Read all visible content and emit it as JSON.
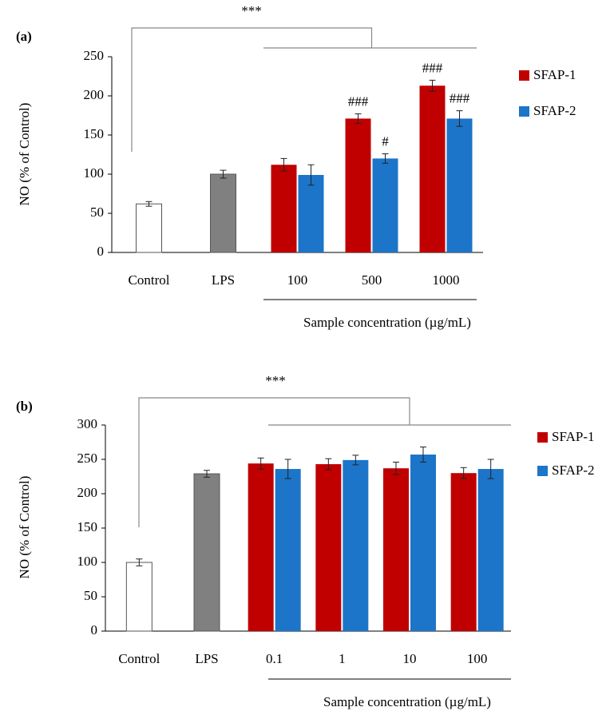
{
  "chart_data": [
    {
      "type": "bar",
      "title": "(a)",
      "y_label": "NO (% of Control)",
      "x_label": "Sample concentration (µg/mL)",
      "significance": "***",
      "categories": [
        "Control",
        "LPS",
        "100",
        "500",
        "1000"
      ],
      "ylim": [
        0,
        250
      ],
      "yticks": [
        0,
        50,
        100,
        150,
        200,
        250
      ],
      "series": [
        {
          "color": "#ffffff",
          "values": [
            62,
            null,
            null,
            null,
            null
          ],
          "errors": [
            3,
            null,
            null,
            null,
            null
          ]
        },
        {
          "color": "#808080",
          "values": [
            null,
            100,
            null,
            null,
            null
          ],
          "errors": [
            null,
            5,
            null,
            null,
            null
          ]
        },
        {
          "name": "SFAP-1",
          "color": "#c00000",
          "values": [
            null,
            null,
            112,
            171,
            213
          ],
          "errors": [
            null,
            null,
            8,
            6,
            7
          ],
          "markers": [
            null,
            null,
            null,
            "###",
            "###"
          ]
        },
        {
          "name": "SFAP-2",
          "color": "#1c75c8",
          "values": [
            null,
            null,
            99,
            120,
            171
          ],
          "errors": [
            null,
            null,
            13,
            6,
            10
          ],
          "markers": [
            null,
            null,
            null,
            "#",
            "###"
          ]
        }
      ]
    },
    {
      "type": "bar",
      "title": "(b)",
      "y_label": "NO (% of Control)",
      "x_label": "Sample concentration (µg/mL)",
      "significance": "***",
      "categories": [
        "Control",
        "LPS",
        "0.1",
        "1",
        "10",
        "100"
      ],
      "ylim": [
        0,
        300
      ],
      "yticks": [
        0,
        50,
        100,
        150,
        200,
        250,
        300
      ],
      "series": [
        {
          "color": "#ffffff",
          "values": [
            100,
            null,
            null,
            null,
            null,
            null
          ],
          "errors": [
            5,
            null,
            null,
            null,
            null,
            null
          ]
        },
        {
          "color": "#808080",
          "values": [
            null,
            229,
            null,
            null,
            null,
            null
          ],
          "errors": [
            null,
            5,
            null,
            null,
            null,
            null
          ]
        },
        {
          "name": "SFAP-1",
          "color": "#c00000",
          "values": [
            null,
            null,
            244,
            243,
            237,
            230
          ],
          "errors": [
            null,
            null,
            8,
            8,
            9,
            8
          ]
        },
        {
          "name": "SFAP-2",
          "color": "#1c75c8",
          "values": [
            null,
            null,
            236,
            249,
            257,
            236
          ],
          "errors": [
            null,
            null,
            14,
            7,
            11,
            14
          ]
        }
      ]
    }
  ]
}
